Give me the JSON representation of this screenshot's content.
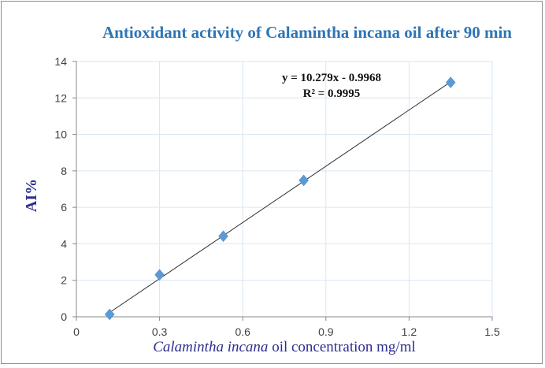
{
  "chart_data": {
    "type": "scatter",
    "title": "Antioxidant activity of Calamintha incana  oil after 90 min",
    "xlabel_italic": "Calamintha  incana",
    "xlabel_rest": " oil concentration mg/ml",
    "ylabel": "AI%",
    "xlim": [
      0,
      1.5
    ],
    "ylim": [
      0,
      14
    ],
    "xticks": [
      "0",
      "0.3",
      "0.6",
      "0.9",
      "1.2",
      "1.5"
    ],
    "yticks": [
      "0",
      "2",
      "4",
      "6",
      "8",
      "10",
      "12",
      "14"
    ],
    "grid": true,
    "series": [
      {
        "name": "AI%",
        "x": [
          0.12,
          0.3,
          0.53,
          0.82,
          1.35
        ],
        "y": [
          0.13,
          2.3,
          4.42,
          7.48,
          12.85
        ]
      }
    ],
    "trendline": {
      "slope": 10.279,
      "intercept": -0.9968,
      "equation": "y = 10.279x - 0.9968",
      "r2": "R² = 0.9995"
    },
    "marker_color": "#5b9bd5",
    "title_color": "#2e75b6",
    "label_color": "#2e2e8f"
  }
}
